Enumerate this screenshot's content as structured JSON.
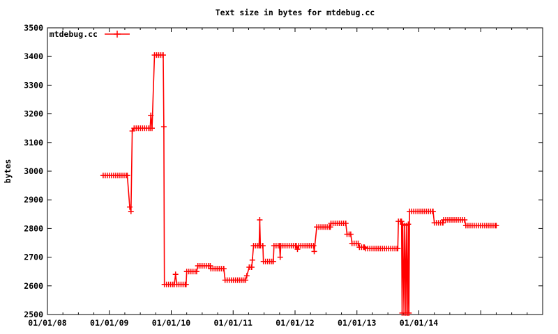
{
  "colors": {
    "series": "#ff0000",
    "axis": "#000000",
    "background": "#ffffff"
  },
  "chart_data": {
    "type": "line",
    "title": "Text size in bytes for mtdebug.cc",
    "xlabel": "",
    "ylabel": "bytes",
    "legend": {
      "position": "top-left-inside",
      "entries": [
        {
          "label": "mtdebug.cc",
          "color": "#ff0000",
          "marker": "plus"
        }
      ]
    },
    "grid": false,
    "xlim_years": [
      2008,
      2016
    ],
    "ylim": [
      2500,
      3500
    ],
    "y_ticks": [
      2500,
      2600,
      2700,
      2800,
      2900,
      3000,
      3100,
      3200,
      3300,
      3400,
      3500
    ],
    "x_major_tick_years": [
      2008,
      2009,
      2010,
      2011,
      2012,
      2013,
      2014,
      2015
    ],
    "x_minor_tick_interval_years": 0.25,
    "x_tick_labels": [
      {
        "year": 2008,
        "label": "01/01/08"
      },
      {
        "year": 2009,
        "label": "01/01/09"
      },
      {
        "year": 2010,
        "label": "01/01/10"
      },
      {
        "year": 2011,
        "label": "01/01/11"
      },
      {
        "year": 2012,
        "label": "01/01/12"
      },
      {
        "year": 2013,
        "label": "01/01/13"
      },
      {
        "year": 2014,
        "label": "01/01/14"
      }
    ],
    "series": [
      {
        "name": "mtdebug.cc",
        "color": "#ff0000",
        "marker": "plus",
        "points_year_bytes": [
          [
            2008.9,
            2985
          ],
          [
            2009.29,
            2985
          ],
          [
            2009.33,
            2875
          ],
          [
            2009.35,
            2860
          ],
          [
            2009.37,
            3140
          ],
          [
            2009.4,
            3150
          ],
          [
            2009.66,
            3150
          ],
          [
            2009.67,
            3195
          ],
          [
            2009.69,
            3150
          ],
          [
            2009.73,
            3405
          ],
          [
            2009.87,
            3405
          ],
          [
            2009.88,
            3155
          ],
          [
            2009.89,
            2605
          ],
          [
            2010.05,
            2605
          ],
          [
            2010.07,
            2640
          ],
          [
            2010.09,
            2605
          ],
          [
            2010.24,
            2605
          ],
          [
            2010.25,
            2650
          ],
          [
            2010.41,
            2650
          ],
          [
            2010.43,
            2670
          ],
          [
            2010.63,
            2670
          ],
          [
            2010.64,
            2660
          ],
          [
            2010.85,
            2660
          ],
          [
            2010.87,
            2620
          ],
          [
            2011.2,
            2620
          ],
          [
            2011.22,
            2635
          ],
          [
            2011.26,
            2665
          ],
          [
            2011.3,
            2665
          ],
          [
            2011.31,
            2690
          ],
          [
            2011.33,
            2740
          ],
          [
            2011.42,
            2740
          ],
          [
            2011.43,
            2830
          ],
          [
            2011.44,
            2740
          ],
          [
            2011.48,
            2740
          ],
          [
            2011.49,
            2685
          ],
          [
            2011.65,
            2685
          ],
          [
            2011.66,
            2740
          ],
          [
            2011.75,
            2740
          ],
          [
            2011.76,
            2700
          ],
          [
            2011.77,
            2740
          ],
          [
            2012.02,
            2740
          ],
          [
            2012.04,
            2728
          ],
          [
            2012.06,
            2740
          ],
          [
            2012.3,
            2740
          ],
          [
            2012.31,
            2720
          ],
          [
            2012.35,
            2805
          ],
          [
            2012.57,
            2805
          ],
          [
            2012.58,
            2818
          ],
          [
            2012.82,
            2818
          ],
          [
            2012.84,
            2780
          ],
          [
            2012.9,
            2780
          ],
          [
            2012.92,
            2748
          ],
          [
            2013.02,
            2748
          ],
          [
            2013.04,
            2735
          ],
          [
            2013.12,
            2735
          ],
          [
            2013.14,
            2730
          ],
          [
            2013.66,
            2730
          ],
          [
            2013.67,
            2825
          ],
          [
            2013.72,
            2825
          ],
          [
            2013.73,
            2505
          ],
          [
            2013.74,
            2815
          ],
          [
            2013.76,
            2505
          ],
          [
            2013.77,
            2810
          ],
          [
            2013.79,
            2505
          ],
          [
            2013.8,
            2810
          ],
          [
            2013.82,
            2505
          ],
          [
            2013.83,
            2815
          ],
          [
            2013.84,
            2505
          ],
          [
            2013.85,
            2860
          ],
          [
            2014.23,
            2860
          ],
          [
            2014.25,
            2820
          ],
          [
            2014.39,
            2820
          ],
          [
            2014.4,
            2830
          ],
          [
            2014.74,
            2830
          ],
          [
            2014.76,
            2810
          ],
          [
            2015.25,
            2810
          ]
        ]
      }
    ]
  }
}
